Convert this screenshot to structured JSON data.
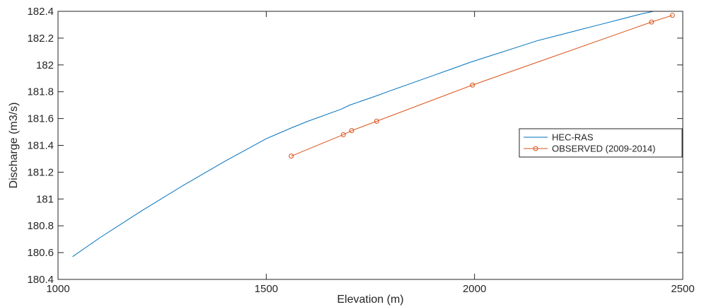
{
  "chart_data": {
    "type": "line",
    "title": "",
    "xlabel": "Elevation (m)",
    "ylabel": "Discharge (m3/s)",
    "xlim": [
      1000,
      2500
    ],
    "ylim": [
      180.4,
      182.4
    ],
    "x_ticks": [
      1000,
      1500,
      2000,
      2500
    ],
    "y_ticks": [
      180.4,
      180.6,
      180.8,
      181,
      181.2,
      181.4,
      181.6,
      181.8,
      182,
      182.2,
      182.4
    ],
    "x_tick_labels": [
      "1000",
      "1500",
      "2000",
      "2500"
    ],
    "y_tick_labels": [
      "180.4",
      "180.6",
      "180.8",
      "181",
      "181.2",
      "181.4",
      "181.6",
      "181.8",
      "182",
      "182.2",
      "182.4"
    ],
    "grid": false,
    "legend_position": "right",
    "series": [
      {
        "name": "HEC-RAS",
        "color": "#0072BD",
        "marker": "none",
        "x": [
          1035,
          1100,
          1200,
          1300,
          1400,
          1500,
          1560,
          1600,
          1680,
          1700,
          1765,
          1800,
          1900,
          1990,
          2050,
          2100,
          2150,
          2200,
          2250,
          2300,
          2350,
          2400,
          2430,
          2480
        ],
        "y": [
          180.57,
          180.71,
          180.91,
          181.1,
          181.28,
          181.45,
          181.53,
          181.58,
          181.67,
          181.7,
          181.77,
          181.81,
          181.92,
          182.02,
          182.08,
          182.13,
          182.18,
          182.22,
          182.26,
          182.3,
          182.34,
          182.38,
          182.4,
          182.44
        ]
      },
      {
        "name": "OBSERVED (2009-2014)",
        "color": "#D95319",
        "marker": "circle",
        "x": [
          1560,
          1685,
          1705,
          1765,
          1995,
          2425,
          2475
        ],
        "y": [
          181.32,
          181.48,
          181.51,
          181.58,
          181.85,
          182.32,
          182.37
        ]
      }
    ]
  }
}
